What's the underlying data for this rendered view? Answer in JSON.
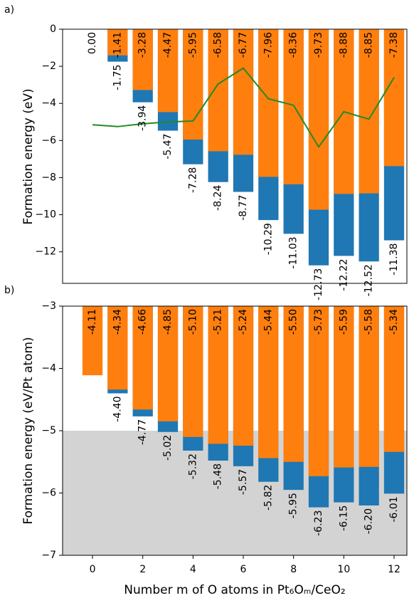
{
  "chart_data": [
    {
      "type": "bar",
      "title": "a)",
      "ylabel": "Formation energy (eV)",
      "x": [
        0,
        1,
        2,
        3,
        4,
        5,
        6,
        7,
        8,
        9,
        10,
        11,
        12
      ],
      "xlim": [
        -1.19,
        12.51
      ],
      "ylim": [
        -13.7,
        0
      ],
      "base": 0,
      "yticks": [
        0,
        {
          "value": -2,
          "label": "−2"
        },
        {
          "value": -4,
          "label": "−4"
        },
        {
          "value": -6,
          "label": "−6"
        },
        {
          "value": -8,
          "label": "−8"
        },
        {
          "value": -10,
          "label": "−10"
        },
        {
          "value": -12,
          "label": "−12"
        }
      ],
      "series": [
        {
          "color": "#1f77b4",
          "values": [
            null,
            -1.75,
            -3.94,
            -5.47,
            -7.28,
            -8.24,
            -8.77,
            -10.29,
            -11.03,
            -12.73,
            -12.22,
            -12.52,
            -11.38
          ],
          "value_labels": [
            null,
            "-1.75",
            "-3.94",
            "-5.47",
            "-7.28",
            "-8.24",
            "-8.77",
            "-10.29",
            "-11.03",
            "-12.73",
            "-12.22",
            "-12.52",
            "-11.38"
          ],
          "label_pos": "below"
        },
        {
          "color": "#ff7f0e",
          "values": [
            0,
            -1.41,
            -3.28,
            -4.47,
            -5.95,
            -6.58,
            -6.77,
            -7.96,
            -8.36,
            -9.73,
            -8.88,
            -8.85,
            -7.38
          ],
          "value_labels": [
            "0.00",
            "-1.41",
            "-3.28",
            "-4.47",
            "-5.95",
            "-6.58",
            "-6.77",
            "-7.96",
            "-8.36",
            "-9.73",
            "-8.88",
            "-8.85",
            "-7.38"
          ],
          "label_pos": "top"
        },
        {
          "type": "line",
          "color": "#228b22",
          "values": [
            -5.15,
            -5.25,
            -5.1,
            -5.0,
            -4.95,
            -2.95,
            -2.1,
            -3.75,
            -4.1,
            -6.35,
            -4.45,
            -4.85,
            -2.6
          ]
        }
      ]
    },
    {
      "type": "bar",
      "title": "b)",
      "ylabel": "Formation energy (eV/Pt atom)",
      "xlabel": "Number m of O atoms in Pt₆Oₘ/CeO₂",
      "x": [
        0,
        1,
        2,
        3,
        4,
        5,
        6,
        7,
        8,
        9,
        10,
        11,
        12
      ],
      "xlim": [
        -1.19,
        12.51
      ],
      "ylim": [
        -7,
        -3
      ],
      "base": -3,
      "shade_below": -5,
      "shade_color": "#d3d3d3",
      "xticks": [
        0,
        2,
        4,
        6,
        8,
        10,
        12
      ],
      "yticks": [
        {
          "value": -3,
          "label": "−3"
        },
        {
          "value": -4,
          "label": "−4"
        },
        {
          "value": -5,
          "label": "−5"
        },
        {
          "value": -6,
          "label": "−6"
        },
        {
          "value": -7,
          "label": "−7"
        }
      ],
      "series": [
        {
          "color": "#1f77b4",
          "values": [
            null,
            -4.4,
            -4.77,
            -5.02,
            -5.32,
            -5.48,
            -5.57,
            -5.82,
            -5.95,
            -6.23,
            -6.15,
            -6.2,
            -6.01
          ],
          "value_labels": [
            null,
            "-4.40",
            "-4.77",
            "-5.02",
            "-5.32",
            "-5.48",
            "-5.57",
            "-5.82",
            "-5.95",
            "-6.23",
            "-6.15",
            "-6.20",
            "-6.01"
          ],
          "label_pos": "below"
        },
        {
          "color": "#ff7f0e",
          "values": [
            -4.11,
            -4.34,
            -4.66,
            -4.85,
            -5.1,
            -5.21,
            -5.24,
            -5.44,
            -5.5,
            -5.73,
            -5.59,
            -5.58,
            -5.34
          ],
          "value_labels": [
            "-4.11",
            "-4.34",
            "-4.66",
            "-4.85",
            "-5.10",
            "-5.21",
            "-5.24",
            "-5.44",
            "-5.50",
            "-5.73",
            "-5.59",
            "-5.58",
            "-5.34"
          ],
          "label_pos": "top"
        }
      ]
    }
  ]
}
